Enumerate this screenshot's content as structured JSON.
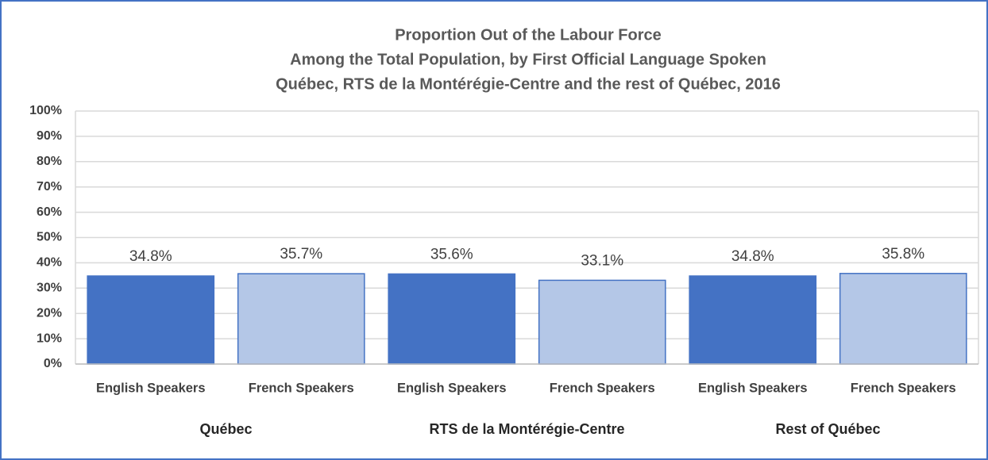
{
  "chart_data": {
    "type": "grouped-bar",
    "title": [
      "Proportion Out of the Labour Force",
      "Among the Total Population, by First Official Language Spoken",
      "Québec, RTS de la Montérégie-Centre and the rest of Québec, 2016"
    ],
    "groups": [
      {
        "name": "Québec",
        "categories": [
          "English Speakers",
          "French Speakers"
        ],
        "values": [
          34.8,
          35.7
        ],
        "value_labels": [
          "34.8%",
          "35.7%"
        ]
      },
      {
        "name": "RTS de la Montérégie-Centre",
        "categories": [
          "English Speakers",
          "French Speakers"
        ],
        "values": [
          35.6,
          33.1
        ],
        "value_labels": [
          "35.6%",
          "33.1%"
        ]
      },
      {
        "name": "Rest of Québec",
        "categories": [
          "English Speakers",
          "French Speakers"
        ],
        "values": [
          34.8,
          35.8
        ],
        "value_labels": [
          "34.8%",
          "35.8%"
        ]
      }
    ],
    "colors": [
      "#4472c4",
      "#b4c7e7"
    ],
    "edge_color": "#4472c4",
    "ylim": [
      0,
      100
    ],
    "yticks": [
      {
        "value": 0,
        "label": "0%"
      },
      {
        "value": 10,
        "label": "10%"
      },
      {
        "value": 20,
        "label": "20%"
      },
      {
        "value": 30,
        "label": "30%"
      },
      {
        "value": 40,
        "label": "40%"
      },
      {
        "value": 50,
        "label": "50%"
      },
      {
        "value": 60,
        "label": "60%"
      },
      {
        "value": 70,
        "label": "70%"
      },
      {
        "value": 80,
        "label": "80%"
      },
      {
        "value": 90,
        "label": "90%"
      },
      {
        "value": 100,
        "label": "100%"
      }
    ],
    "grid": true
  }
}
